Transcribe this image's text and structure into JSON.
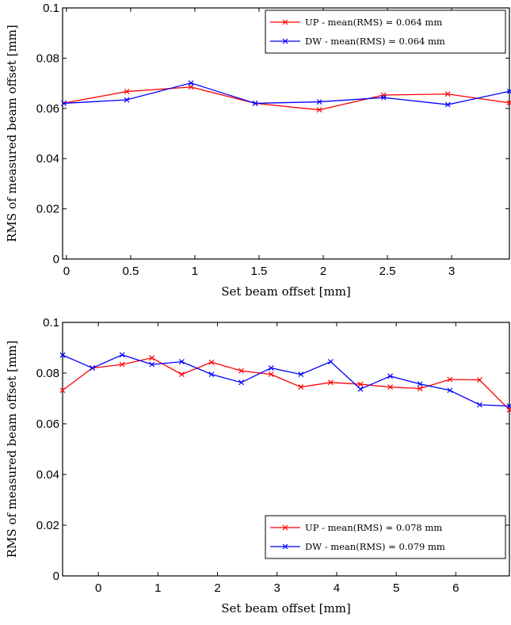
{
  "chart_data": [
    {
      "type": "line",
      "xlabel": "Set beam offset [mm]",
      "ylabel": "RMS of measured beam offset [mm]",
      "xlim": [
        -0.03,
        3.45
      ],
      "ylim": [
        0,
        0.1
      ],
      "xticks": [
        0,
        0.5,
        1,
        1.5,
        2,
        2.5,
        3
      ],
      "xtick_labels": [
        "0",
        "0.5",
        "1",
        "1.5",
        "2",
        "2.5",
        "3"
      ],
      "yticks": [
        0,
        0.02,
        0.04,
        0.06,
        0.08,
        0.1
      ],
      "ytick_labels": [
        "0",
        "0.02",
        "0.04",
        "0.06",
        "0.08",
        "0.1"
      ],
      "grid": false,
      "legend_position": "top-right",
      "series": [
        {
          "name": "UP - mean(RMS) = 0.064 mm",
          "color": "#ff0000",
          "x": [
            -0.02,
            0.47,
            0.97,
            1.47,
            1.97,
            2.47,
            2.97,
            3.45
          ],
          "y": [
            0.0621,
            0.0667,
            0.0685,
            0.062,
            0.0594,
            0.0653,
            0.0657,
            0.0622
          ]
        },
        {
          "name": "DW - mean(RMS) = 0.064 mm",
          "color": "#0000ff",
          "x": [
            -0.02,
            0.47,
            0.97,
            1.47,
            1.97,
            2.47,
            2.97,
            3.45
          ],
          "y": [
            0.062,
            0.0634,
            0.0701,
            0.062,
            0.0626,
            0.0643,
            0.0615,
            0.0668
          ]
        }
      ]
    },
    {
      "type": "line",
      "xlabel": "Set beam offset [mm]",
      "ylabel": "RMS of measured beam offset [mm]",
      "xlim": [
        -0.6,
        6.9
      ],
      "ylim": [
        0,
        0.1
      ],
      "xticks": [
        0,
        1,
        2,
        3,
        4,
        5,
        6
      ],
      "xtick_labels": [
        "0",
        "1",
        "2",
        "3",
        "4",
        "5",
        "6"
      ],
      "yticks": [
        0,
        0.02,
        0.04,
        0.06,
        0.08,
        0.1
      ],
      "ytick_labels": [
        "0",
        "0.02",
        "0.04",
        "0.06",
        "0.08",
        "0.1"
      ],
      "grid": false,
      "legend_position": "bottom-right",
      "series": [
        {
          "name": "UP - mean(RMS) = 0.078 mm",
          "color": "#ff0000",
          "x": [
            -0.6,
            -0.1,
            0.4,
            0.9,
            1.4,
            1.9,
            2.4,
            2.9,
            3.4,
            3.9,
            4.4,
            4.9,
            5.4,
            5.9,
            6.4,
            6.9
          ],
          "y": [
            0.0732,
            0.082,
            0.0834,
            0.086,
            0.0795,
            0.0843,
            0.0809,
            0.0795,
            0.0745,
            0.0763,
            0.0756,
            0.0745,
            0.0739,
            0.0775,
            0.0773,
            0.0655
          ]
        },
        {
          "name": "DW - mean(RMS) = 0.079 mm",
          "color": "#0000ff",
          "x": [
            -0.6,
            -0.1,
            0.4,
            0.9,
            1.4,
            1.9,
            2.4,
            2.9,
            3.4,
            3.9,
            4.4,
            4.9,
            5.4,
            5.9,
            6.4,
            6.9
          ],
          "y": [
            0.0871,
            0.082,
            0.0872,
            0.0834,
            0.0845,
            0.0795,
            0.0763,
            0.082,
            0.0795,
            0.0845,
            0.0737,
            0.0788,
            0.0757,
            0.0732,
            0.0675,
            0.067
          ]
        }
      ]
    }
  ]
}
